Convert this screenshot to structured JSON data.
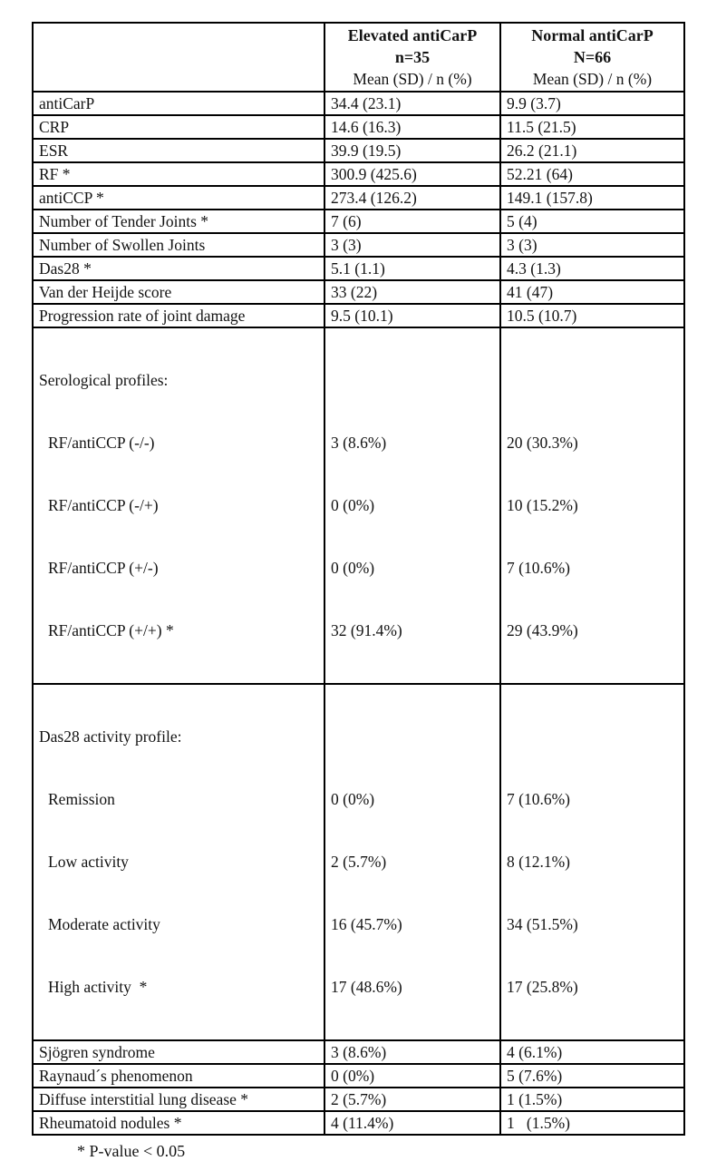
{
  "table": {
    "header": {
      "empty": "",
      "elevated": {
        "line1": "Elevated antiCarP",
        "line2": "n=35",
        "line3": "Mean (SD) / n (%)"
      },
      "normal": {
        "line1": "Normal antiCarP",
        "line2": "N=66",
        "line3": "Mean (SD) / n (%)"
      }
    },
    "rows": [
      {
        "label": "antiCarP",
        "elevated": "34.4 (23.1)",
        "normal": "9.9 (3.7)"
      },
      {
        "label": "CRP",
        "elevated": "14.6 (16.3)",
        "normal": "11.5 (21.5)"
      },
      {
        "label": "ESR",
        "elevated": "39.9 (19.5)",
        "normal": "26.2 (21.1)"
      },
      {
        "label": "RF *",
        "elevated": "300.9 (425.6)",
        "normal": "52.21 (64)"
      },
      {
        "label": "antiCCP *",
        "elevated": "273.4 (126.2)",
        "normal": "149.1 (157.8)"
      },
      {
        "label": "Number of Tender Joints *",
        "elevated": "7 (6)",
        "normal": "5 (4)"
      },
      {
        "label": "Number of Swollen Joints",
        "elevated": "3 (3)",
        "normal": "3 (3)"
      },
      {
        "label": "Das28 *",
        "elevated": "5.1 (1.1)",
        "normal": "4.3 (1.3)"
      },
      {
        "label": "Van der Heijde score",
        "elevated": "33 (22)",
        "normal": "41 (47)"
      },
      {
        "label": "Progression rate of joint damage",
        "elevated": "9.5 (10.1)",
        "normal": "10.5 (10.7)"
      },
      {
        "label": "Serological profiles:",
        "items": [
          {
            "label": "RF/antiCCP (-/-)",
            "elevated": "3 (8.6%)",
            "normal": "20 (30.3%)"
          },
          {
            "label": "RF/antiCCP (-/+)",
            "elevated": "0 (0%)",
            "normal": "10 (15.2%)"
          },
          {
            "label": "RF/antiCCP (+/-)",
            "elevated": "0 (0%)",
            "normal": "7 (10.6%)"
          },
          {
            "label": "RF/antiCCP (+/+) *",
            "elevated": "32 (91.4%)",
            "normal": "29 (43.9%)"
          }
        ]
      },
      {
        "label": "Das28 activity profile:",
        "items": [
          {
            "label": "Remission",
            "elevated": "0 (0%)",
            "normal": "7 (10.6%)"
          },
          {
            "label": "Low activity",
            "elevated": "2 (5.7%)",
            "normal": "8 (12.1%)"
          },
          {
            "label": "Moderate activity",
            "elevated": "16 (45.7%)",
            "normal": "34 (51.5%)"
          },
          {
            "label": "High activity  *",
            "elevated": "17 (48.6%)",
            "normal": "17 (25.8%)"
          }
        ]
      },
      {
        "label": "Sjögren syndrome",
        "elevated": "3 (8.6%)",
        "normal": "4 (6.1%)"
      },
      {
        "label": "Raynaud´s phenomenon",
        "elevated": "0 (0%)",
        "normal": "5 (7.6%)"
      },
      {
        "label": "Diffuse interstitial lung disease *",
        "elevated": "2 (5.7%)",
        "normal": "1 (1.5%)"
      },
      {
        "label": "Rheumatoid nodules *",
        "elevated": "4 (11.4%)",
        "normal": "1   (1.5%)"
      }
    ],
    "footnote": "* P-value < 0.05"
  },
  "colors": {
    "border": "#000000",
    "text": "#131313",
    "background": "#ffffff"
  }
}
